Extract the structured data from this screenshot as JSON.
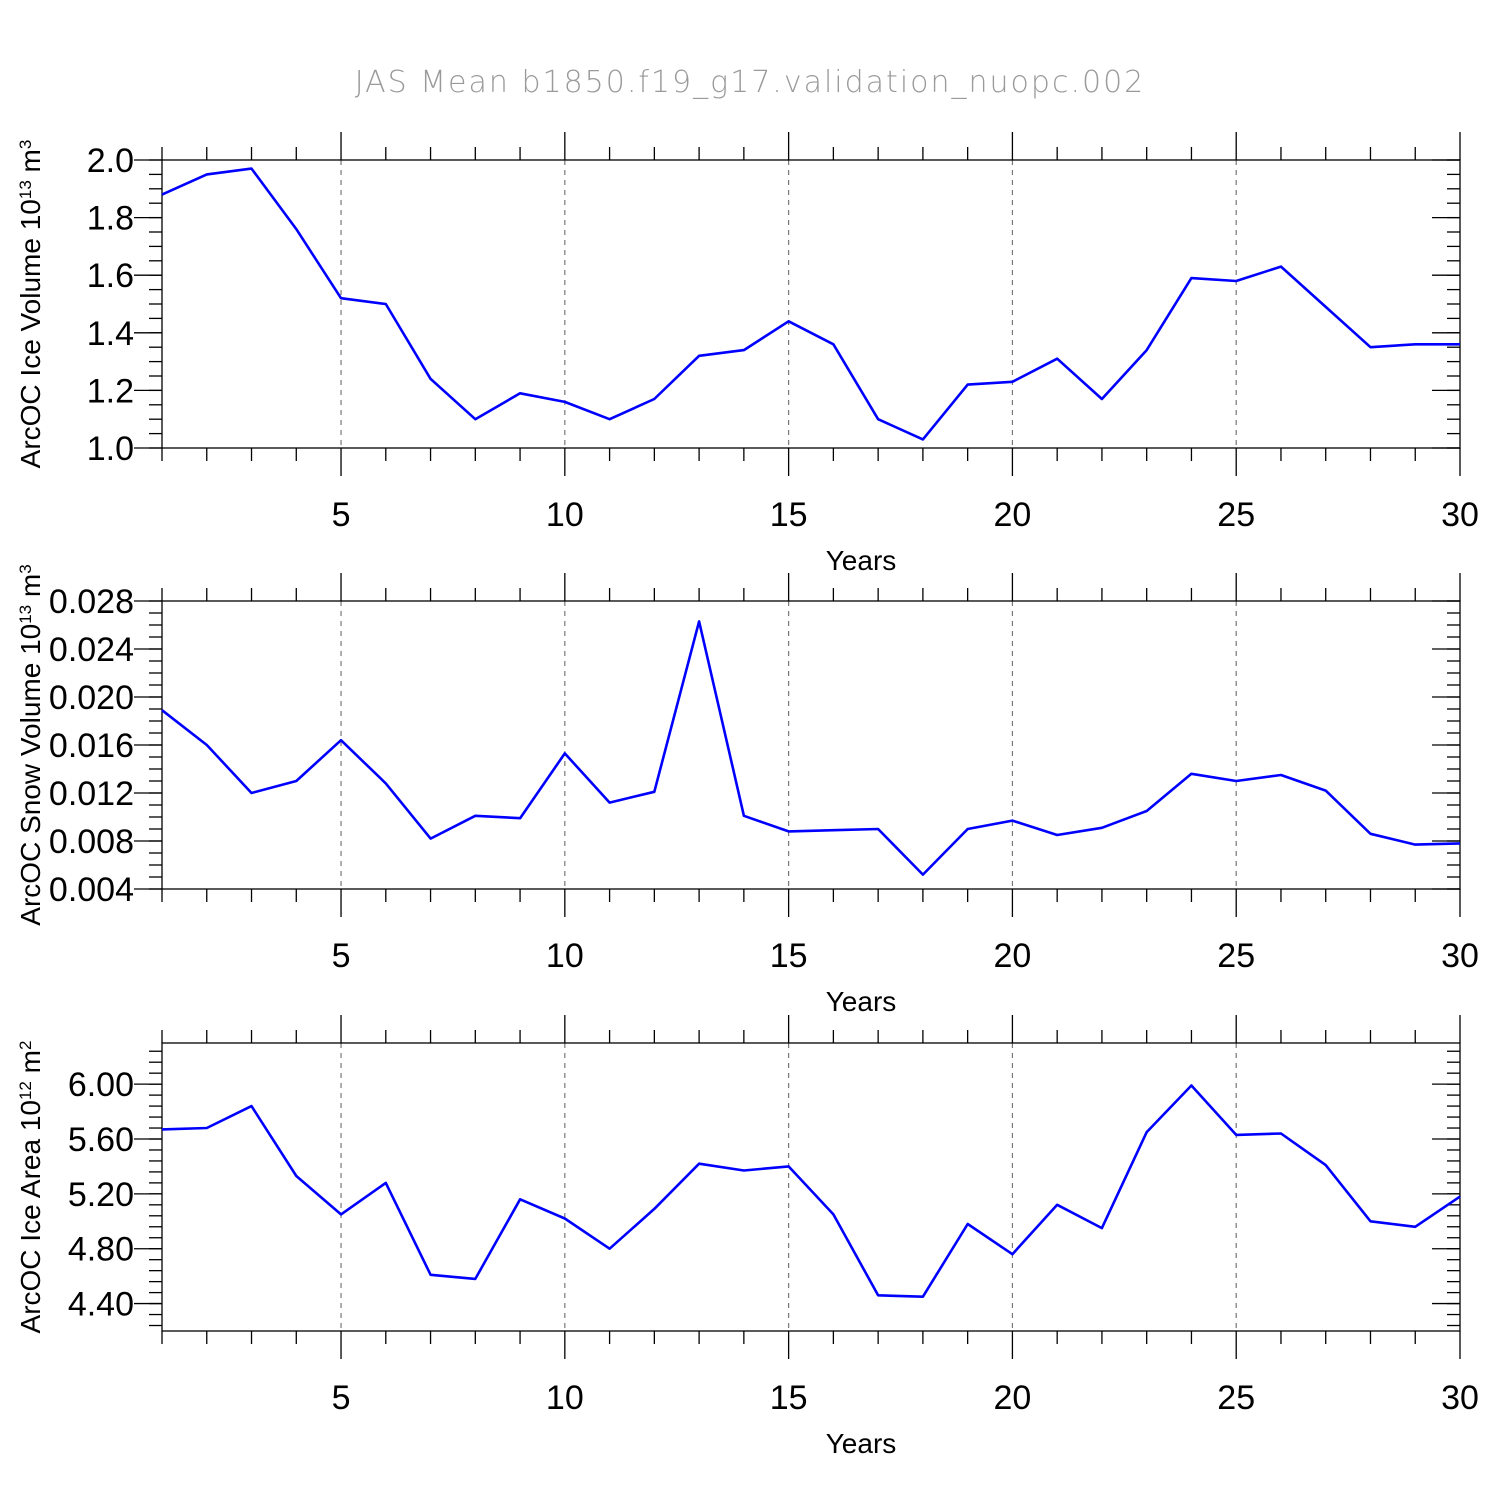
{
  "title": "JAS Mean b1850.f19_g17.validation_nuopc.002",
  "colors": {
    "line": "#0000ff",
    "title": "#9a9a9a",
    "grid": "#777777"
  },
  "chart_data": [
    {
      "type": "line",
      "title": "",
      "xlabel": "Years",
      "ylabel_parts": [
        "ArcOC Ice Volume 10",
        "13",
        " m",
        "3"
      ],
      "xlim": [
        1,
        30
      ],
      "ylim": [
        1.0,
        2.0
      ],
      "xticks": [
        5,
        10,
        15,
        20,
        25,
        30
      ],
      "yticks": [
        "1.0",
        "1.2",
        "1.4",
        "1.6",
        "1.8",
        "2.0"
      ],
      "grid": "vertical dashed at major x ticks",
      "x": [
        1,
        2,
        3,
        4,
        5,
        6,
        7,
        8,
        9,
        10,
        11,
        12,
        13,
        14,
        15,
        16,
        17,
        18,
        19,
        20,
        21,
        22,
        23,
        24,
        25,
        26,
        27,
        28,
        29,
        30
      ],
      "series": [
        {
          "values": [
            1.88,
            1.95,
            1.97,
            1.76,
            1.52,
            1.5,
            1.24,
            1.1,
            1.19,
            1.16,
            1.1,
            1.17,
            1.32,
            1.34,
            1.44,
            1.36,
            1.1,
            1.03,
            1.22,
            1.23,
            1.31,
            1.17,
            1.34,
            1.59,
            1.58,
            1.63,
            1.49,
            1.35,
            1.36,
            1.36
          ]
        }
      ]
    },
    {
      "type": "line",
      "title": "",
      "xlabel": "Years",
      "ylabel_parts": [
        "ArcOC Snow Volume 10",
        "13",
        " m",
        "3"
      ],
      "xlim": [
        1,
        30
      ],
      "ylim": [
        0.004,
        0.028
      ],
      "xticks": [
        5,
        10,
        15,
        20,
        25,
        30
      ],
      "yticks": [
        "0.004",
        "0.008",
        "0.012",
        "0.016",
        "0.020",
        "0.024",
        "0.028"
      ],
      "grid": "vertical dashed at major x ticks",
      "x": [
        1,
        2,
        3,
        4,
        5,
        6,
        7,
        8,
        9,
        10,
        11,
        12,
        13,
        14,
        15,
        16,
        17,
        18,
        19,
        20,
        21,
        22,
        23,
        24,
        25,
        26,
        27,
        28,
        29,
        30
      ],
      "series": [
        {
          "values": [
            0.0189,
            0.016,
            0.012,
            0.013,
            0.0164,
            0.0128,
            0.0082,
            0.0101,
            0.0099,
            0.0153,
            0.0112,
            0.0121,
            0.0263,
            0.0101,
            0.0088,
            0.0089,
            0.009,
            0.0052,
            0.009,
            0.0097,
            0.0085,
            0.0091,
            0.0105,
            0.0136,
            0.013,
            0.0135,
            0.0122,
            0.0086,
            0.0077,
            0.0078
          ]
        }
      ]
    },
    {
      "type": "line",
      "title": "",
      "xlabel": "Years",
      "ylabel_parts": [
        "ArcOC Ice Area 10",
        "12",
        " m",
        "2"
      ],
      "xlim": [
        1,
        30
      ],
      "ylim": [
        4.2,
        6.3
      ],
      "xticks": [
        5,
        10,
        15,
        20,
        25,
        30
      ],
      "yticks": [
        "4.40",
        "4.80",
        "5.20",
        "5.60",
        "6.00"
      ],
      "grid": "vertical dashed at major x ticks",
      "x": [
        1,
        2,
        3,
        4,
        5,
        6,
        7,
        8,
        9,
        10,
        11,
        12,
        13,
        14,
        15,
        16,
        17,
        18,
        19,
        20,
        21,
        22,
        23,
        24,
        25,
        26,
        27,
        28,
        29,
        30
      ],
      "series": [
        {
          "values": [
            5.67,
            5.68,
            5.84,
            5.33,
            5.05,
            5.28,
            4.61,
            4.58,
            5.16,
            5.02,
            4.8,
            5.09,
            5.42,
            5.37,
            5.4,
            5.05,
            4.46,
            4.45,
            4.98,
            4.76,
            5.12,
            4.95,
            5.65,
            5.99,
            5.63,
            5.64,
            5.41,
            5.0,
            4.96,
            5.18
          ]
        }
      ]
    }
  ]
}
